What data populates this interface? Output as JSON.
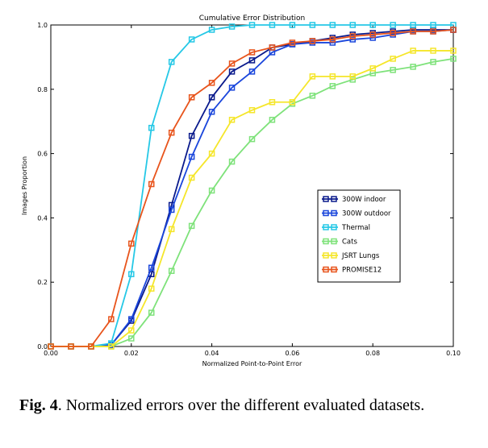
{
  "chart_data": {
    "type": "line",
    "title": "Cumulative Error Distribution",
    "xlabel": "Normalized Point-to-Point Error",
    "ylabel": "Images Proportion",
    "xlim": [
      0,
      0.1
    ],
    "ylim": [
      0,
      1.0
    ],
    "x_ticks": [
      "0.00",
      "0.02",
      "0.04",
      "0.06",
      "0.08",
      "0.10"
    ],
    "y_ticks": [
      "0.0",
      "0.2",
      "0.4",
      "0.6",
      "0.8",
      "1.0"
    ],
    "grid": true,
    "legend_position": "lower-right",
    "x": [
      0,
      0.005,
      0.01,
      0.015,
      0.02,
      0.025,
      0.03,
      0.035,
      0.04,
      0.045,
      0.05,
      0.055,
      0.06,
      0.065,
      0.07,
      0.075,
      0.08,
      0.085,
      0.09,
      0.095,
      0.1
    ],
    "series": [
      {
        "name": "300W indoor",
        "color": "#0a1a8c",
        "values": [
          0,
          0,
          0,
          0.005,
          0.08,
          0.225,
          0.44,
          0.655,
          0.775,
          0.855,
          0.89,
          0.93,
          0.94,
          0.95,
          0.96,
          0.97,
          0.975,
          0.98,
          0.985,
          0.985,
          0.985
        ]
      },
      {
        "name": "300W outdoor",
        "color": "#1a46dc",
        "values": [
          0,
          0,
          0,
          0.005,
          0.085,
          0.245,
          0.425,
          0.59,
          0.73,
          0.805,
          0.855,
          0.915,
          0.94,
          0.945,
          0.945,
          0.955,
          0.96,
          0.97,
          0.98,
          0.98,
          0.985
        ]
      },
      {
        "name": "Thermal",
        "color": "#25c8e6",
        "values": [
          0,
          0,
          0,
          0.01,
          0.225,
          0.68,
          0.885,
          0.955,
          0.985,
          0.995,
          1.0,
          1.0,
          1.0,
          1.0,
          1.0,
          1.0,
          1.0,
          1.0,
          1.0,
          1.0,
          1.0
        ]
      },
      {
        "name": "Cats",
        "color": "#7ee27a",
        "values": [
          0,
          0,
          0,
          0,
          0.025,
          0.105,
          0.235,
          0.375,
          0.485,
          0.575,
          0.645,
          0.705,
          0.755,
          0.78,
          0.81,
          0.83,
          0.85,
          0.86,
          0.87,
          0.885,
          0.895
        ]
      },
      {
        "name": "JSRT Lungs",
        "color": "#f5e62a",
        "values": [
          0,
          0,
          0,
          0,
          0.05,
          0.18,
          0.365,
          0.525,
          0.6,
          0.705,
          0.735,
          0.76,
          0.76,
          0.84,
          0.84,
          0.84,
          0.865,
          0.895,
          0.92,
          0.92,
          0.92
        ]
      },
      {
        "name": "PROMISE12",
        "color": "#e8541c",
        "values": [
          0,
          0,
          0,
          0.085,
          0.32,
          0.505,
          0.665,
          0.775,
          0.82,
          0.88,
          0.915,
          0.93,
          0.945,
          0.95,
          0.955,
          0.965,
          0.97,
          0.975,
          0.98,
          0.98,
          0.985
        ]
      }
    ]
  },
  "caption": {
    "label": "Fig. 4",
    "text": ".   Normalized errors over the different evaluated datasets."
  }
}
